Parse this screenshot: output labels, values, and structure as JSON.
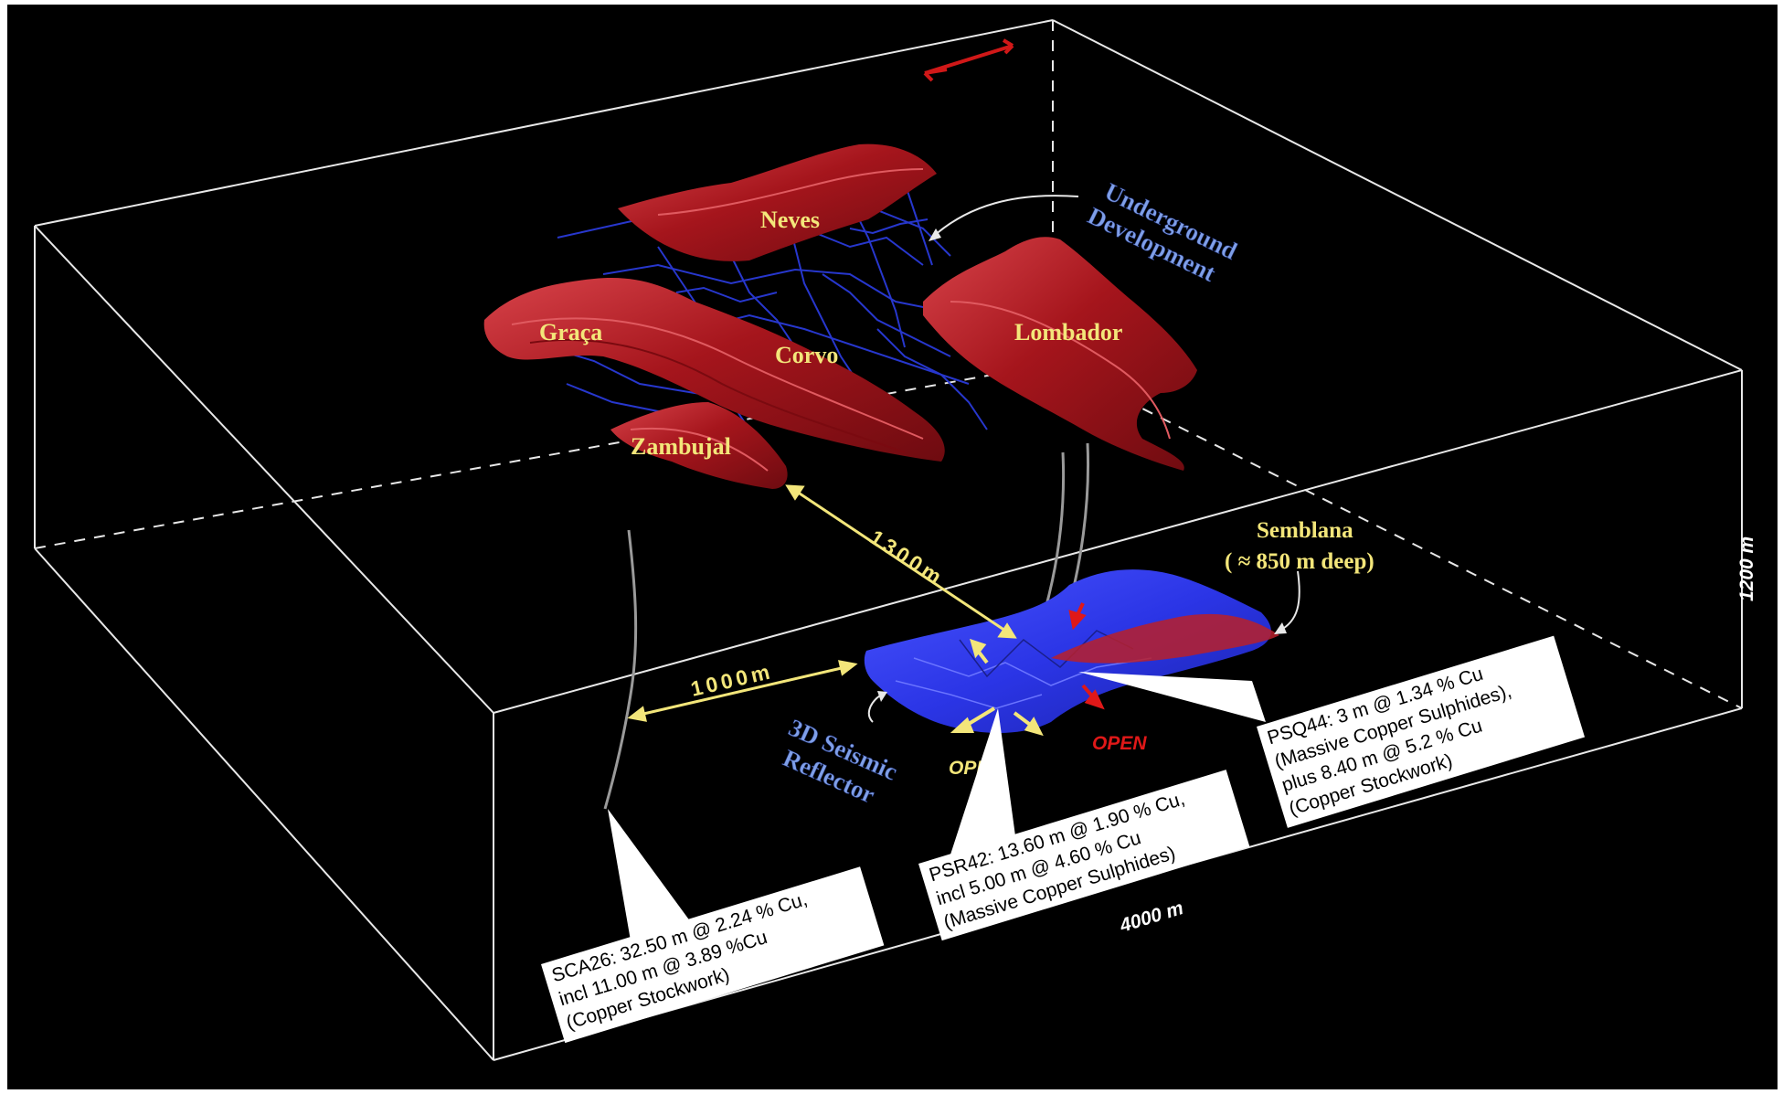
{
  "deposits": {
    "neves": "Neves",
    "graca": "Graça",
    "corvo": "Corvo",
    "lombador": "Lombador",
    "zambujal": "Zambujal"
  },
  "underground": {
    "line1": "Underground",
    "line2": "Development"
  },
  "semblana": {
    "line1": "Semblana",
    "line2": "( ≈ 850 m deep)"
  },
  "seismic": {
    "line1": "3D Seismic",
    "line2": "Reflector"
  },
  "distances": {
    "d1300": "1300m",
    "d1000": "1000m"
  },
  "open_labels": {
    "yellow": "OPEN",
    "red": "OPEN"
  },
  "dimensions": {
    "width": "4000 m",
    "height": "1200 m"
  },
  "callouts": {
    "sca26": [
      "SCA26: 32.50 m @ 2.24 % Cu,",
      "incl 11.00 m @ 3.89 %Cu",
      "(Copper Stockwork)"
    ],
    "psr42": [
      "PSR42: 13.60 m @ 1.90 % Cu,",
      "incl 5.00 m @ 4.60 % Cu",
      "(Massive Copper Sulphides)"
    ],
    "psq44": [
      "PSQ44: 3 m @ 1.34 % Cu",
      "(Massive Copper Sulphides),",
      "plus 8.40 m @ 5.2 % Cu",
      "(Copper Stockwork)"
    ]
  },
  "colors": {
    "background": "#000000",
    "orebody_red": "#a5151c",
    "orebody_highlight": "#d8434a",
    "tunnel_blue": "#2a3ad8",
    "seismic_blue": "#2b35e6",
    "label_yellow": "#f3e67a",
    "open_red": "#e01818"
  }
}
